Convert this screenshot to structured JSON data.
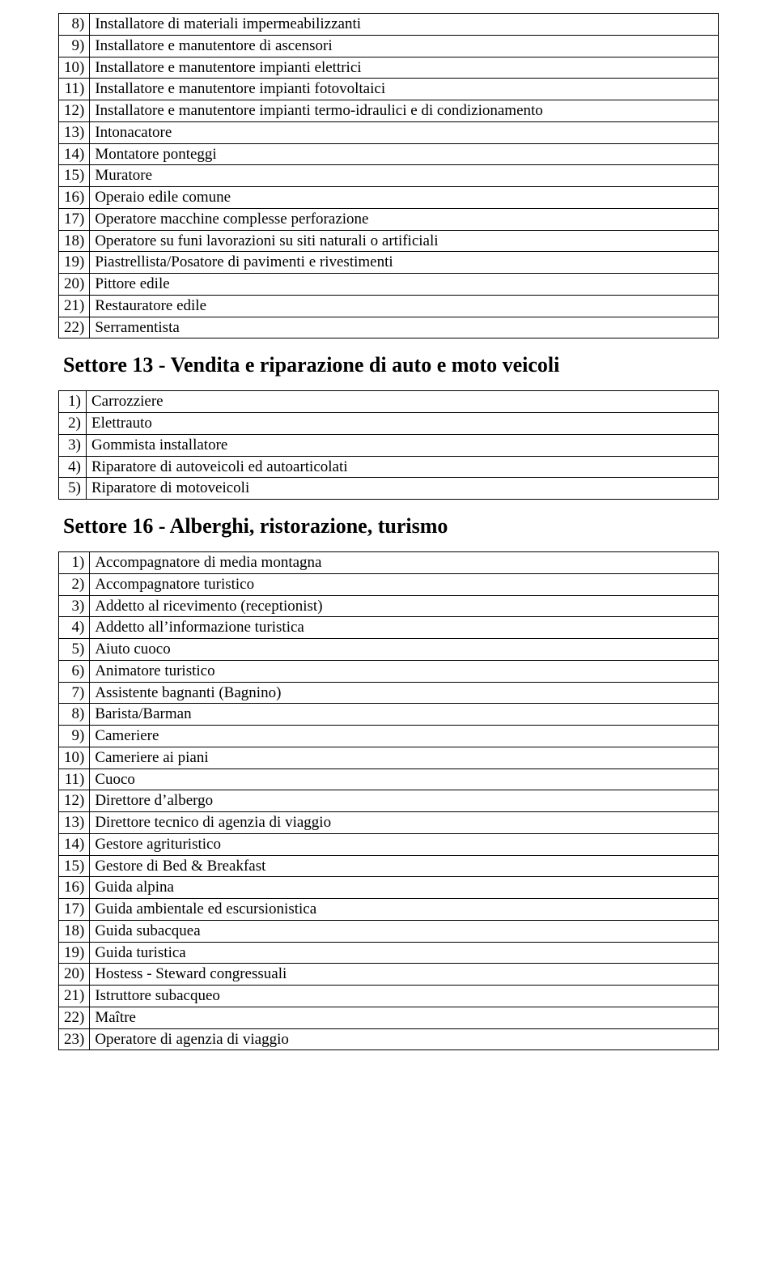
{
  "sections": [
    {
      "heading": null,
      "items": [
        {
          "n": "8)",
          "label": "Installatore di materiali impermeabilizzanti"
        },
        {
          "n": "9)",
          "label": "Installatore e manutentore di ascensori"
        },
        {
          "n": "10)",
          "label": "Installatore e manutentore impianti elettrici"
        },
        {
          "n": "11)",
          "label": "Installatore e manutentore impianti fotovoltaici"
        },
        {
          "n": "12)",
          "label": "Installatore e manutentore impianti termo-idraulici e di condizionamento"
        },
        {
          "n": "13)",
          "label": "Intonacatore"
        },
        {
          "n": "14)",
          "label": "Montatore ponteggi"
        },
        {
          "n": "15)",
          "label": "Muratore"
        },
        {
          "n": "16)",
          "label": "Operaio edile comune"
        },
        {
          "n": "17)",
          "label": "Operatore macchine complesse perforazione"
        },
        {
          "n": "18)",
          "label": "Operatore su funi lavorazioni su siti naturali o artificiali"
        },
        {
          "n": "19)",
          "label": "Piastrellista/Posatore di pavimenti e rivestimenti"
        },
        {
          "n": "20)",
          "label": "Pittore edile"
        },
        {
          "n": "21)",
          "label": "Restauratore edile"
        },
        {
          "n": "22)",
          "label": "Serramentista"
        }
      ]
    },
    {
      "heading": "Settore 13 - Vendita e riparazione di auto e moto veicoli",
      "items": [
        {
          "n": "1)",
          "label": "Carrozziere"
        },
        {
          "n": "2)",
          "label": "Elettrauto"
        },
        {
          "n": "3)",
          "label": "Gommista installatore"
        },
        {
          "n": "4)",
          "label": "Riparatore di autoveicoli ed autoarticolati"
        },
        {
          "n": "5)",
          "label": "Riparatore di motoveicoli"
        }
      ]
    },
    {
      "heading": "Settore 16 - Alberghi, ristorazione, turismo",
      "items": [
        {
          "n": "1)",
          "label": "Accompagnatore di media montagna"
        },
        {
          "n": "2)",
          "label": "Accompagnatore turistico"
        },
        {
          "n": "3)",
          "label": "Addetto al ricevimento (receptionist)"
        },
        {
          "n": "4)",
          "label": "Addetto all’informazione turistica"
        },
        {
          "n": "5)",
          "label": "Aiuto cuoco"
        },
        {
          "n": "6)",
          "label": "Animatore turistico"
        },
        {
          "n": "7)",
          "label": "Assistente bagnanti (Bagnino)"
        },
        {
          "n": "8)",
          "label": "Barista/Barman"
        },
        {
          "n": "9)",
          "label": "Cameriere"
        },
        {
          "n": "10)",
          "label": "Cameriere ai piani"
        },
        {
          "n": "11)",
          "label": "Cuoco"
        },
        {
          "n": "12)",
          "label": "Direttore d’albergo"
        },
        {
          "n": "13)",
          "label": "Direttore tecnico di agenzia di viaggio"
        },
        {
          "n": "14)",
          "label": "Gestore agrituristico"
        },
        {
          "n": "15)",
          "label": "Gestore di Bed & Breakfast"
        },
        {
          "n": "16)",
          "label": "Guida alpina"
        },
        {
          "n": "17)",
          "label": "Guida ambientale ed escursionistica"
        },
        {
          "n": "18)",
          "label": "Guida subacquea"
        },
        {
          "n": "19)",
          "label": "Guida turistica"
        },
        {
          "n": "20)",
          "label": "Hostess - Steward congressuali"
        },
        {
          "n": "21)",
          "label": "Istruttore subacqueo"
        },
        {
          "n": "22)",
          "label": "Maître"
        },
        {
          "n": "23)",
          "label": "Operatore di agenzia di viaggio"
        }
      ]
    }
  ]
}
